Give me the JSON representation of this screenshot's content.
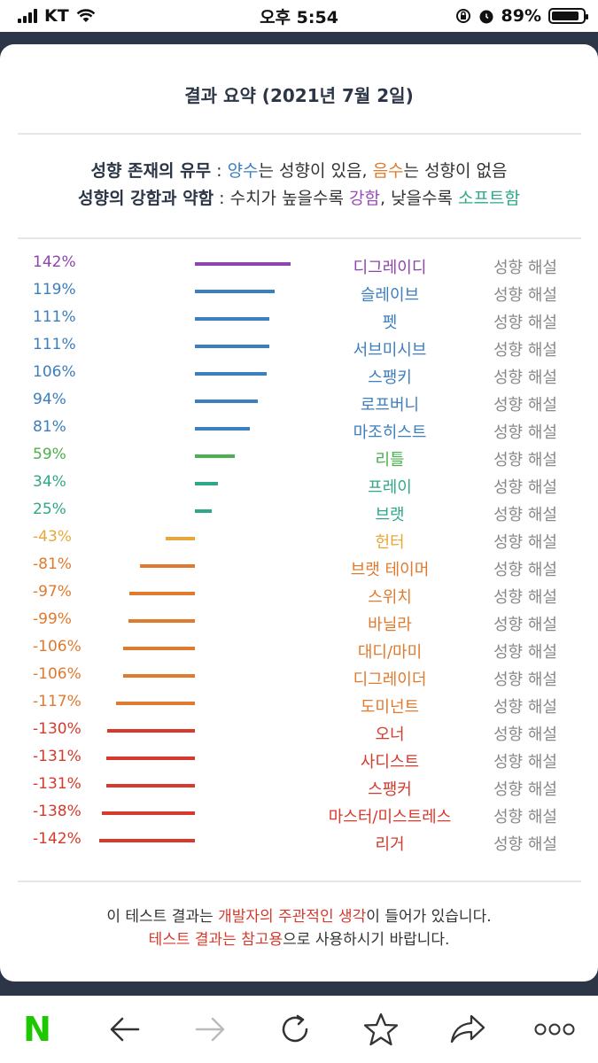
{
  "status_bar": {
    "carrier": "KT",
    "time": "오후 5:54",
    "battery": "89%",
    "battery_level": 0.89
  },
  "page": {
    "title": "결과 요약 (2021년 7월 2일)",
    "legend": {
      "line1": {
        "label": "성향 존재의 유무",
        "sep": " : ",
        "pos_word": "양수",
        "pos_text": "는 성향이 있음, ",
        "neg_word": "음수",
        "neg_text": "는 성향이 없음"
      },
      "line2": {
        "label": "성향의 강함과 약함",
        "sep": " : 수치가 높을수록 ",
        "strong_word": "강함",
        "mid_text": ", 낮을수록 ",
        "soft_word": "소프트함"
      }
    },
    "results": [
      {
        "percent": "142%",
        "value": 142,
        "name": "디그레이디",
        "link": "성향 해설",
        "color": "#8e44ad"
      },
      {
        "percent": "119%",
        "value": 119,
        "name": "슬레이브",
        "link": "성향 해설",
        "color": "#3d7ebf"
      },
      {
        "percent": "111%",
        "value": 111,
        "name": "펫",
        "link": "성향 해설",
        "color": "#3d7ebf"
      },
      {
        "percent": "111%",
        "value": 111,
        "name": "서브미시브",
        "link": "성향 해설",
        "color": "#3d7ebf"
      },
      {
        "percent": "106%",
        "value": 106,
        "name": "스팽키",
        "link": "성향 해설",
        "color": "#3d7ebf"
      },
      {
        "percent": "94%",
        "value": 94,
        "name": "로프버니",
        "link": "성향 해설",
        "color": "#3d7ebf"
      },
      {
        "percent": "81%",
        "value": 81,
        "name": "마조히스트",
        "link": "성향 해설",
        "color": "#3d7ebf"
      },
      {
        "percent": "59%",
        "value": 59,
        "name": "리틀",
        "link": "성향 해설",
        "color": "#4caf50"
      },
      {
        "percent": "34%",
        "value": 34,
        "name": "프레이",
        "link": "성향 해설",
        "color": "#2fa88a"
      },
      {
        "percent": "25%",
        "value": 25,
        "name": "브랫",
        "link": "성향 해설",
        "color": "#2fa88a"
      },
      {
        "percent": "-43%",
        "value": -43,
        "name": "헌터",
        "link": "성향 해설",
        "color": "#e8a838"
      },
      {
        "percent": "-81%",
        "value": -81,
        "name": "브랫 테이머",
        "link": "성향 해설",
        "color": "#e07a2e"
      },
      {
        "percent": "-97%",
        "value": -97,
        "name": "스위치",
        "link": "성향 해설",
        "color": "#e07a2e"
      },
      {
        "percent": "-99%",
        "value": -99,
        "name": "바닐라",
        "link": "성향 해설",
        "color": "#e07a2e"
      },
      {
        "percent": "-106%",
        "value": -106,
        "name": "대디/마미",
        "link": "성향 해설",
        "color": "#e07a2e"
      },
      {
        "percent": "-106%",
        "value": -106,
        "name": "디그레이더",
        "link": "성향 해설",
        "color": "#e07a2e"
      },
      {
        "percent": "-117%",
        "value": -117,
        "name": "도미넌트",
        "link": "성향 해설",
        "color": "#e07a2e"
      },
      {
        "percent": "-130%",
        "value": -130,
        "name": "오너",
        "link": "성향 해설",
        "color": "#d63a2c"
      },
      {
        "percent": "-131%",
        "value": -131,
        "name": "사디스트",
        "link": "성향 해설",
        "color": "#d63a2c"
      },
      {
        "percent": "-131%",
        "value": -131,
        "name": "스팽커",
        "link": "성향 해설",
        "color": "#d63a2c"
      },
      {
        "percent": "-138%",
        "value": -138,
        "name": "마스터/미스트레스",
        "link": "성향 해설",
        "color": "#d63a2c"
      },
      {
        "percent": "-142%",
        "value": -142,
        "name": "리거",
        "link": "성향 해설",
        "color": "#d63a2c"
      }
    ],
    "disclaimer": {
      "line1_pre": "이 테스트 결과는 ",
      "line1_red": "개발자의 주관적인 생각",
      "line1_post": "이 들어가 있습니다.",
      "line2_red": "테스트 결과는 참고용",
      "line2_post": "으로 사용하시기 바랍니다."
    }
  },
  "toolbar": {
    "logo": "N",
    "icons": [
      "naver-logo",
      "back-arrow-icon",
      "forward-arrow-icon",
      "refresh-icon",
      "star-icon",
      "share-icon",
      "more-icon"
    ]
  }
}
